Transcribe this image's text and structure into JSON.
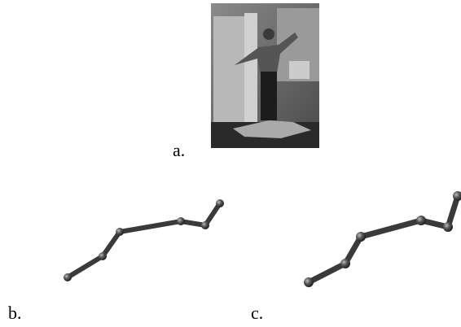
{
  "figure": {
    "labels": [
      "a.",
      "b.",
      "c."
    ]
  }
}
